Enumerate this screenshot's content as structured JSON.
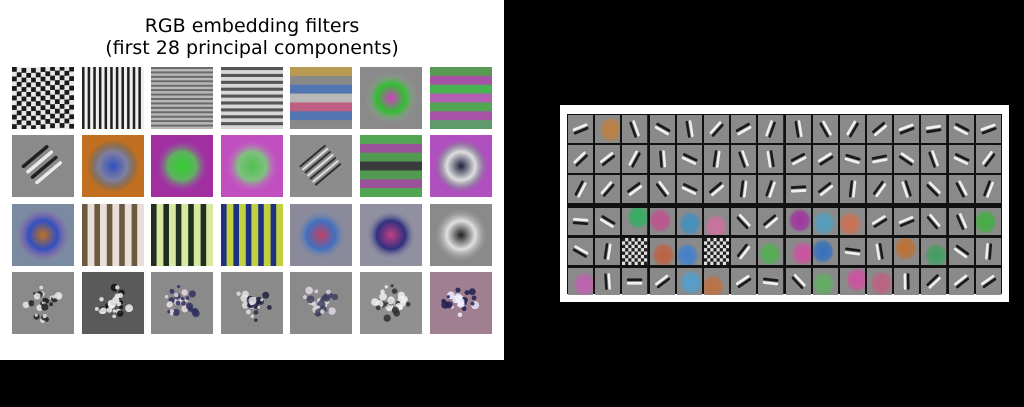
{
  "left_figure": {
    "title_line1": "RGB embedding filters",
    "title_line2": "(first 28 principal components)",
    "rows": 4,
    "cols": 7,
    "filters": [
      {
        "kind": "checker",
        "a": "#1a1a1a",
        "b": "#e8e8e8",
        "freq": 13
      },
      {
        "kind": "vstripes",
        "a": "#202020",
        "b": "#f0f0f0",
        "freq": 11
      },
      {
        "kind": "hstripes",
        "a": "#6a6a6a",
        "b": "#b8b8b8",
        "freq": 14
      },
      {
        "kind": "hstripes",
        "a": "#555555",
        "b": "#d8d8d8",
        "freq": 9
      },
      {
        "kind": "hbands",
        "colors": [
          "#c8a040",
          "#8a8a8a",
          "#4070c0",
          "#c8c8c8",
          "#d05080",
          "#4070c0",
          "#8a8a8a"
        ]
      },
      {
        "kind": "blob",
        "bg": "#8a8a8a",
        "c1": "#d040c0",
        "c2": "#30c030",
        "ring": "#a0a0a0"
      },
      {
        "kind": "hbands",
        "colors": [
          "#4aa040",
          "#b040b0",
          "#30c040",
          "#c050c0",
          "#40b040",
          "#b040b0",
          "#50a060"
        ]
      },
      {
        "kind": "diag",
        "bg": "#8a8a8a",
        "a": "#202020",
        "b": "#eaeaea"
      },
      {
        "kind": "blob",
        "bg": "#c07020",
        "c1": "#3050c0",
        "c2": "#8080a0",
        "ring": "#306080"
      },
      {
        "kind": "blob",
        "bg": "#a030a0",
        "c1": "#30d030",
        "c2": "#60b060",
        "ring": "#a040b0"
      },
      {
        "kind": "blob",
        "bg": "#c050c0",
        "c1": "#50c050",
        "c2": "#80c080",
        "ring": "#d060d0"
      },
      {
        "kind": "diagfine",
        "bg": "#8c8c8c",
        "a": "#303030",
        "b": "#e0e0e0"
      },
      {
        "kind": "hbands",
        "colors": [
          "#40b040",
          "#a040a0",
          "#40a040",
          "#202020",
          "#40a040",
          "#a040a0",
          "#40b040"
        ]
      },
      {
        "kind": "blob",
        "bg": "#b050c0",
        "c1": "#202040",
        "c2": "#e0e0e0",
        "ring": "#40a050"
      },
      {
        "kind": "blob",
        "bg": "#7a8aa0",
        "c1": "#c07020",
        "c2": "#3050c0",
        "ring": "#a050b0"
      },
      {
        "kind": "vstripes",
        "a": "#6a5a40",
        "b": "#e8e0d8",
        "freq": 5
      },
      {
        "kind": "vstripes",
        "a": "#203020",
        "b": "#d8e8a0",
        "freq": 5
      },
      {
        "kind": "vstripes",
        "a": "#203080",
        "b": "#c0d040",
        "freq": 5
      },
      {
        "kind": "blob",
        "bg": "#8a8a9a",
        "c1": "#c04060",
        "c2": "#4070c0",
        "ring": "#9090a0"
      },
      {
        "kind": "blob",
        "bg": "#9090a0",
        "c1": "#c04080",
        "c2": "#303080",
        "ring": "#a0a0b0"
      },
      {
        "kind": "blob",
        "bg": "#8a8a8a",
        "c1": "#202020",
        "c2": "#e0e0e0",
        "ring": "#a0a0a0"
      },
      {
        "kind": "speckle",
        "bg": "#8a8a8a",
        "a": "#202020",
        "b": "#e8e8e8",
        "seed": 3
      },
      {
        "kind": "speckle",
        "bg": "#5a5a5a",
        "a": "#101010",
        "b": "#f0f0f0",
        "seed": 7
      },
      {
        "kind": "speckle",
        "bg": "#8a8a8a",
        "a": "#303060",
        "b": "#e8d8e0",
        "seed": 11
      },
      {
        "kind": "speckle",
        "bg": "#8a8a8a",
        "a": "#202040",
        "b": "#e0e0e0",
        "seed": 17
      },
      {
        "kind": "speckle",
        "bg": "#8a8a8a",
        "a": "#404060",
        "b": "#e0d8e0",
        "seed": 23
      },
      {
        "kind": "speckle",
        "bg": "#909090",
        "a": "#303030",
        "b": "#f0f0f0",
        "seed": 29
      },
      {
        "kind": "speckle",
        "bg": "#a08090",
        "a": "#202050",
        "b": "#f0f0ff",
        "seed": 31
      }
    ]
  },
  "right_figure": {
    "rows": 6,
    "cols": 16,
    "gray_colors": [
      "#8a8a8a"
    ],
    "colored": [
      {
        "r": 0,
        "c": 1,
        "color": "#c08040"
      },
      {
        "r": 3,
        "c": 2,
        "color": "#30b060"
      },
      {
        "r": 3,
        "c": 3,
        "color": "#c05090"
      },
      {
        "r": 3,
        "c": 4,
        "color": "#4090c0"
      },
      {
        "r": 3,
        "c": 5,
        "color": "#d070a0"
      },
      {
        "r": 3,
        "c": 8,
        "color": "#a030a0"
      },
      {
        "r": 3,
        "c": 9,
        "color": "#50a0c0"
      },
      {
        "r": 3,
        "c": 10,
        "color": "#d07050"
      },
      {
        "r": 3,
        "c": 15,
        "color": "#40b040"
      },
      {
        "r": 4,
        "c": 3,
        "color": "#c06040"
      },
      {
        "r": 4,
        "c": 4,
        "color": "#4080d0"
      },
      {
        "r": 4,
        "c": 7,
        "color": "#50b050"
      },
      {
        "r": 4,
        "c": 8,
        "color": "#d050a0"
      },
      {
        "r": 4,
        "c": 9,
        "color": "#3070c0"
      },
      {
        "r": 4,
        "c": 12,
        "color": "#c07030"
      },
      {
        "r": 4,
        "c": 13,
        "color": "#40a060"
      },
      {
        "r": 5,
        "c": 0,
        "color": "#c060b0"
      },
      {
        "r": 5,
        "c": 4,
        "color": "#50a0d0"
      },
      {
        "r": 5,
        "c": 5,
        "color": "#c07040"
      },
      {
        "r": 5,
        "c": 9,
        "color": "#60b060"
      },
      {
        "r": 5,
        "c": 10,
        "color": "#d050a0"
      },
      {
        "r": 5,
        "c": 11,
        "color": "#c06080"
      }
    ],
    "checker_cells": [
      {
        "r": 4,
        "c": 2
      },
      {
        "r": 4,
        "c": 5
      }
    ]
  }
}
